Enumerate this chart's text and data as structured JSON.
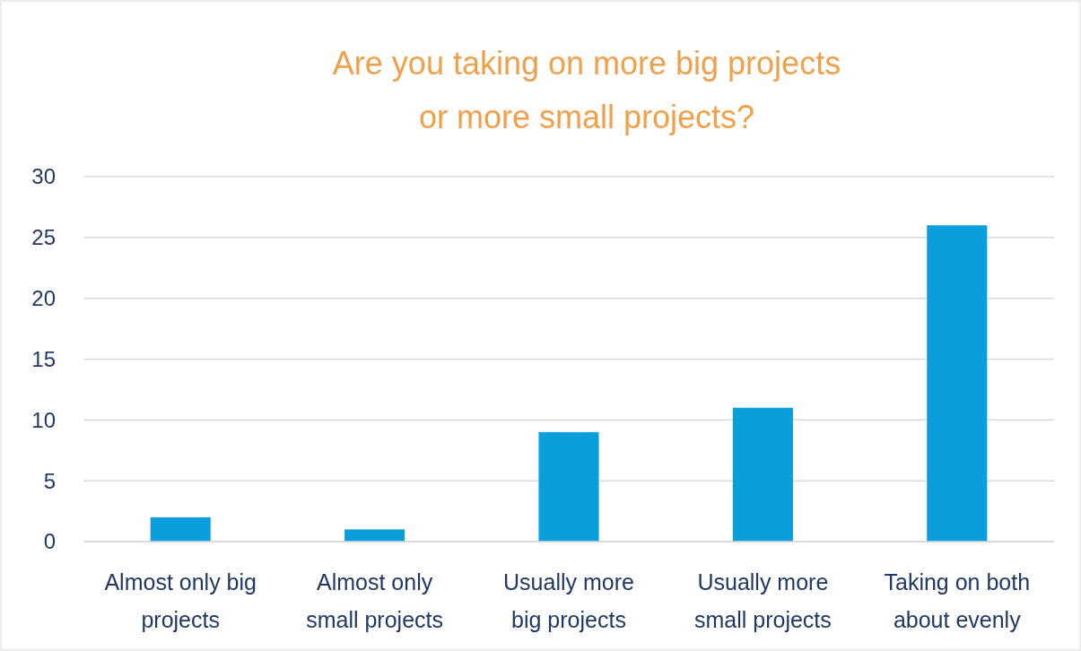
{
  "chart_data": {
    "type": "bar",
    "title": "Are you taking on more big projects\nor more small projects?",
    "categories": [
      "Almost only big projects",
      "Almost only small projects",
      "Usually more big projects",
      "Usually more small projects",
      "Taking on both about evenly"
    ],
    "values": [
      2,
      1,
      9,
      11,
      26
    ],
    "color": "#0a9fdc",
    "ylim": [
      0,
      30
    ],
    "yticks": [
      0,
      5,
      10,
      15,
      20,
      25,
      30
    ],
    "grid": "y"
  }
}
